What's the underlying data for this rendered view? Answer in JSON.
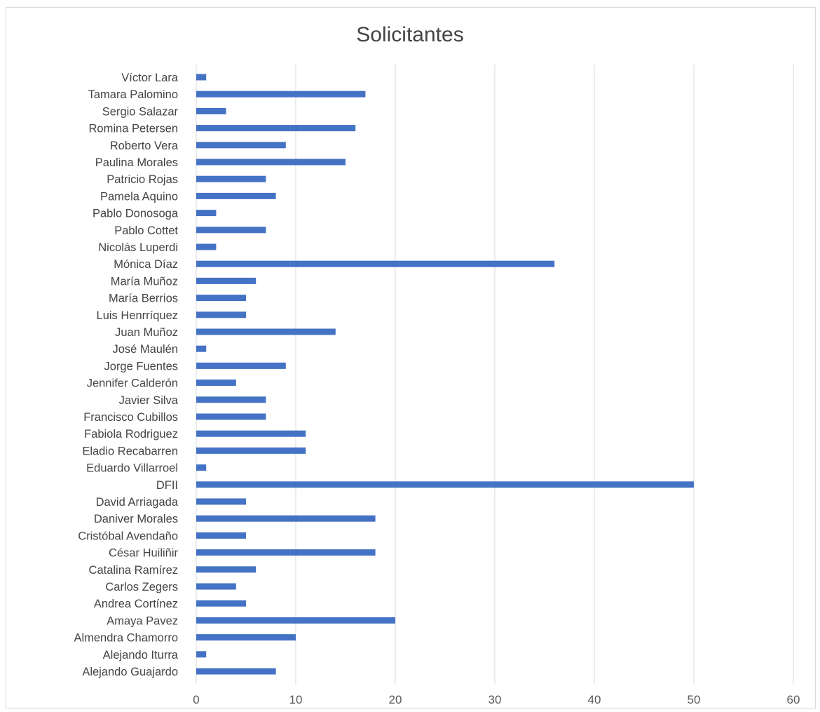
{
  "chart_data": {
    "type": "bar",
    "orientation": "horizontal",
    "title": "Solicitantes",
    "xlabel": "",
    "ylabel": "",
    "xlim": [
      0,
      60
    ],
    "xticks": [
      "0",
      "10",
      "20",
      "30",
      "40",
      "50",
      "60"
    ],
    "grid": true,
    "legend": "none",
    "bar_color": "#4472c4",
    "categories": [
      "Víctor Lara",
      "Tamara Palomino",
      "Sergio Salazar",
      "Romina Petersen",
      "Roberto Vera",
      "Paulina Morales",
      "Patricio Rojas",
      "Pamela Aquino",
      "Pablo Donosoga",
      "Pablo Cottet",
      "Nicolás Luperdi",
      "Mónica Díaz",
      "María Muñoz",
      "María Berrios",
      "Luis Henrríquez",
      "Juan Muñoz",
      "José Maulén",
      "Jorge Fuentes",
      "Jennifer Calderón",
      "Javier Silva",
      "Francisco Cubillos",
      "Fabiola Rodriguez",
      "Eladio Recabarren",
      "Eduardo Villarroel",
      "DFII",
      "David Arriagada",
      "Daniver Morales",
      "Cristóbal Avendaño",
      "César Huiliñir",
      "Catalina Ramírez",
      "Carlos Zegers",
      "Andrea Cortínez",
      "Amaya Pavez",
      "Almendra Chamorro",
      "Alejando Iturra",
      "Alejando Guajardo"
    ],
    "values": [
      1,
      17,
      3,
      16,
      9,
      15,
      7,
      8,
      2,
      7,
      2,
      36,
      6,
      5,
      5,
      14,
      1,
      9,
      4,
      7,
      7,
      11,
      11,
      1,
      50,
      5,
      18,
      5,
      18,
      6,
      4,
      5,
      20,
      10,
      1,
      8
    ]
  }
}
